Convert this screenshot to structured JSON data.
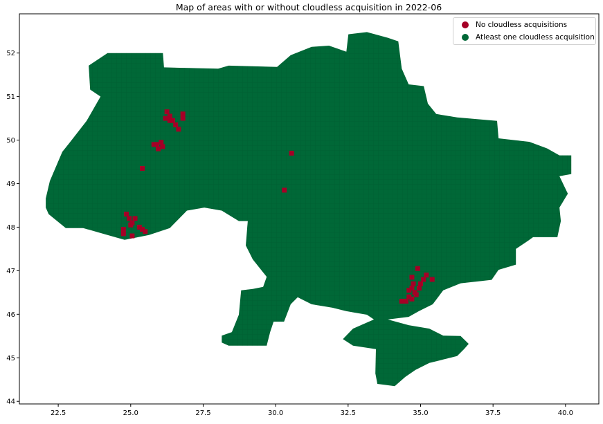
{
  "chart_data": {
    "type": "map",
    "title": "Map of areas with or without cloudless acquisition in 2022-06",
    "xlabel": "",
    "ylabel": "",
    "xlim": [
      21.16,
      41.15
    ],
    "ylim": [
      43.94,
      52.9
    ],
    "xticks": [
      "22.5",
      "25.0",
      "27.5",
      "30.0",
      "32.5",
      "35.0",
      "37.5",
      "40.0"
    ],
    "yticks": [
      "44",
      "45",
      "46",
      "47",
      "48",
      "49",
      "50",
      "51",
      "52"
    ],
    "grid": false,
    "legend_position": "top-right",
    "legend": [
      {
        "label": "No cloudless acquisitions",
        "color": "#a50026"
      },
      {
        "label": "Atleast one cloudless acquisition",
        "color": "#006837"
      }
    ],
    "region_outline_lonlat": [
      [
        22.07,
        48.66
      ],
      [
        22.21,
        49.06
      ],
      [
        22.64,
        49.73
      ],
      [
        22.88,
        49.93
      ],
      [
        23.48,
        50.44
      ],
      [
        23.96,
        51.0
      ],
      [
        23.6,
        51.16
      ],
      [
        23.55,
        51.71
      ],
      [
        24.2,
        52.0
      ],
      [
        26.11,
        52.0
      ],
      [
        26.15,
        51.67
      ],
      [
        28.02,
        51.64
      ],
      [
        28.38,
        51.71
      ],
      [
        30.05,
        51.68
      ],
      [
        30.52,
        51.95
      ],
      [
        31.24,
        52.14
      ],
      [
        31.84,
        52.17
      ],
      [
        32.44,
        52.03
      ],
      [
        32.51,
        52.43
      ],
      [
        33.15,
        52.48
      ],
      [
        33.87,
        52.35
      ],
      [
        34.23,
        52.27
      ],
      [
        34.35,
        51.64
      ],
      [
        34.59,
        51.28
      ],
      [
        35.11,
        51.24
      ],
      [
        35.25,
        50.84
      ],
      [
        35.54,
        50.6
      ],
      [
        36.26,
        50.52
      ],
      [
        37.64,
        50.44
      ],
      [
        37.69,
        50.04
      ],
      [
        38.76,
        49.96
      ],
      [
        39.36,
        49.81
      ],
      [
        39.79,
        49.65
      ],
      [
        40.2,
        49.65
      ],
      [
        40.2,
        49.22
      ],
      [
        39.79,
        49.17
      ],
      [
        40.08,
        48.77
      ],
      [
        39.79,
        48.45
      ],
      [
        39.84,
        48.14
      ],
      [
        39.72,
        47.77
      ],
      [
        38.88,
        47.77
      ],
      [
        38.65,
        47.66
      ],
      [
        38.29,
        47.5
      ],
      [
        38.29,
        47.14
      ],
      [
        37.69,
        47.02
      ],
      [
        37.45,
        46.79
      ],
      [
        36.38,
        46.71
      ],
      [
        35.78,
        46.55
      ],
      [
        35.42,
        46.23
      ],
      [
        34.94,
        46.07
      ],
      [
        34.59,
        45.94
      ],
      [
        33.87,
        45.88
      ],
      [
        34.59,
        45.75
      ],
      [
        35.3,
        45.67
      ],
      [
        35.78,
        45.51
      ],
      [
        36.38,
        45.5
      ],
      [
        36.66,
        45.32
      ],
      [
        36.5,
        45.2
      ],
      [
        36.26,
        45.04
      ],
      [
        35.78,
        44.96
      ],
      [
        35.3,
        44.88
      ],
      [
        34.82,
        44.72
      ],
      [
        34.47,
        44.56
      ],
      [
        34.11,
        44.35
      ],
      [
        33.51,
        44.4
      ],
      [
        33.44,
        44.64
      ],
      [
        33.46,
        45.2
      ],
      [
        32.67,
        45.28
      ],
      [
        32.32,
        45.43
      ],
      [
        32.67,
        45.67
      ],
      [
        33.39,
        45.88
      ],
      [
        33.15,
        45.99
      ],
      [
        32.44,
        46.07
      ],
      [
        31.96,
        46.15
      ],
      [
        31.24,
        46.23
      ],
      [
        30.76,
        46.39
      ],
      [
        30.52,
        46.23
      ],
      [
        30.29,
        45.83
      ],
      [
        29.93,
        45.83
      ],
      [
        29.81,
        45.59
      ],
      [
        29.69,
        45.28
      ],
      [
        29.09,
        45.28
      ],
      [
        28.38,
        45.28
      ],
      [
        28.14,
        45.35
      ],
      [
        28.14,
        45.51
      ],
      [
        28.49,
        45.59
      ],
      [
        28.73,
        45.99
      ],
      [
        28.81,
        46.55
      ],
      [
        29.21,
        46.58
      ],
      [
        29.57,
        46.63
      ],
      [
        29.69,
        46.86
      ],
      [
        29.21,
        47.26
      ],
      [
        28.97,
        47.58
      ],
      [
        29.04,
        48.14
      ],
      [
        28.73,
        48.14
      ],
      [
        28.14,
        48.38
      ],
      [
        27.54,
        48.45
      ],
      [
        26.94,
        48.38
      ],
      [
        26.35,
        47.98
      ],
      [
        25.63,
        47.82
      ],
      [
        24.79,
        47.71
      ],
      [
        24.2,
        47.82
      ],
      [
        23.36,
        47.98
      ],
      [
        22.76,
        47.98
      ],
      [
        22.17,
        48.3
      ],
      [
        22.07,
        48.45
      ]
    ],
    "series": [
      {
        "name": "No cloudless acquisitions",
        "color": "#a50026",
        "cells_lonlat": [
          [
            26.25,
            50.65
          ],
          [
            26.35,
            50.55
          ],
          [
            26.2,
            50.5
          ],
          [
            26.45,
            50.45
          ],
          [
            26.55,
            50.35
          ],
          [
            26.65,
            50.25
          ],
          [
            26.8,
            50.6
          ],
          [
            26.8,
            50.5
          ],
          [
            26.35,
            50.45
          ],
          [
            25.9,
            49.9
          ],
          [
            26.05,
            49.95
          ],
          [
            26.1,
            49.85
          ],
          [
            25.95,
            49.8
          ],
          [
            25.8,
            49.9
          ],
          [
            25.4,
            49.35
          ],
          [
            24.85,
            48.3
          ],
          [
            24.95,
            48.2
          ],
          [
            25.05,
            48.1
          ],
          [
            25.15,
            48.2
          ],
          [
            24.75,
            47.95
          ],
          [
            24.75,
            47.85
          ],
          [
            25.3,
            48.0
          ],
          [
            25.4,
            47.95
          ],
          [
            25.5,
            47.9
          ],
          [
            25.05,
            47.8
          ],
          [
            25.0,
            48.05
          ],
          [
            30.3,
            48.85
          ],
          [
            30.55,
            49.7
          ],
          [
            34.9,
            47.05
          ],
          [
            34.7,
            46.85
          ],
          [
            34.75,
            46.7
          ],
          [
            34.6,
            46.55
          ],
          [
            34.7,
            46.6
          ],
          [
            34.8,
            46.5
          ],
          [
            34.6,
            46.4
          ],
          [
            34.5,
            46.3
          ],
          [
            34.35,
            46.3
          ],
          [
            35.0,
            46.7
          ],
          [
            35.1,
            46.8
          ],
          [
            35.2,
            46.9
          ],
          [
            35.4,
            46.8
          ],
          [
            34.95,
            46.6
          ],
          [
            34.85,
            46.45
          ],
          [
            34.7,
            46.35
          ]
        ]
      },
      {
        "name": "Atleast one cloudless acquisition",
        "color": "#006837",
        "fill": "region_outline_lonlat"
      }
    ]
  }
}
